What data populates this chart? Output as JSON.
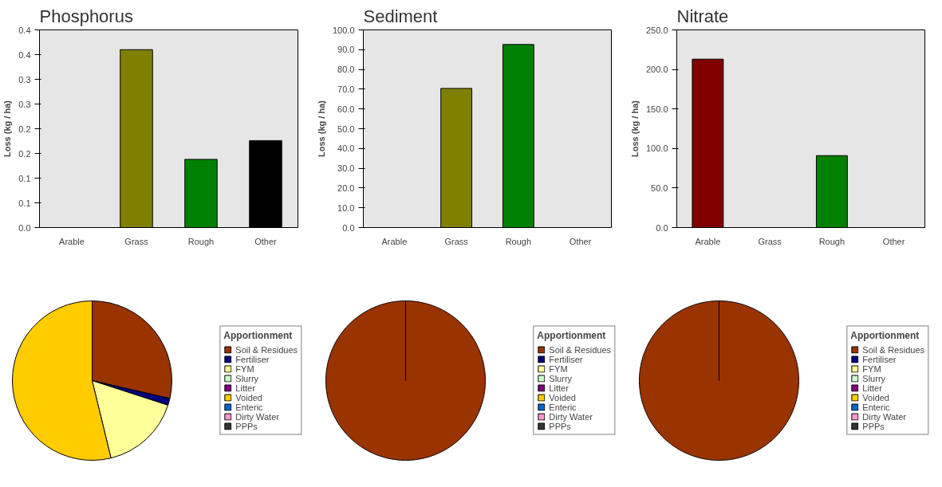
{
  "chart_data": [
    {
      "type": "bar",
      "title": "Phosphorus",
      "ylabel": "Loss (kg / ha)",
      "categories": [
        "Arable",
        "Grass",
        "Rough",
        "Other"
      ],
      "values": [
        null,
        0.36,
        0.138,
        0.176
      ],
      "colors": [
        "#800000",
        "#808000",
        "#008000",
        "#000000"
      ],
      "ylim": [
        0,
        0.4
      ],
      "yticks": [
        {
          "value": 0,
          "label": "0.0"
        },
        {
          "value": 0.05,
          "label": "0.1"
        },
        {
          "value": 0.1,
          "label": "0.1"
        },
        {
          "value": 0.15,
          "label": "0.2"
        },
        {
          "value": 0.2,
          "label": "0.2"
        },
        {
          "value": 0.25,
          "label": "0.3"
        },
        {
          "value": 0.3,
          "label": "0.3"
        },
        {
          "value": 0.35,
          "label": "0.4"
        },
        {
          "value": 0.4,
          "label": "0.4"
        }
      ]
    },
    {
      "type": "bar",
      "title": "Sediment",
      "ylabel": "Loss (kg / ha)",
      "categories": [
        "Arable",
        "Grass",
        "Rough",
        "Other"
      ],
      "values": [
        null,
        70.4,
        92.6,
        null
      ],
      "colors": [
        "#800000",
        "#808000",
        "#008000",
        "#000000"
      ],
      "ylim": [
        0,
        100
      ],
      "yticks": [
        {
          "value": 0,
          "label": "0.0"
        },
        {
          "value": 10,
          "label": "10.0"
        },
        {
          "value": 20,
          "label": "20.0"
        },
        {
          "value": 30,
          "label": "30.0"
        },
        {
          "value": 40,
          "label": "40.0"
        },
        {
          "value": 50,
          "label": "50.0"
        },
        {
          "value": 60,
          "label": "60.0"
        },
        {
          "value": 70,
          "label": "70.0"
        },
        {
          "value": 80,
          "label": "80.0"
        },
        {
          "value": 90,
          "label": "90.0"
        },
        {
          "value": 100,
          "label": "100.0"
        }
      ]
    },
    {
      "type": "bar",
      "title": "Nitrate",
      "ylabel": "Loss (kg / ha)",
      "categories": [
        "Arable",
        "Grass",
        "Rough",
        "Other"
      ],
      "values": [
        213,
        null,
        91,
        null
      ],
      "colors": [
        "#800000",
        "#808000",
        "#008000",
        "#000000"
      ],
      "ylim": [
        0,
        250
      ],
      "yticks": [
        {
          "value": 0,
          "label": "0.0"
        },
        {
          "value": 50,
          "label": "50.0"
        },
        {
          "value": 100,
          "label": "100.0"
        },
        {
          "value": 150,
          "label": "150.0"
        },
        {
          "value": 200,
          "label": "200.0"
        },
        {
          "value": 250,
          "label": "250.0"
        }
      ]
    },
    {
      "type": "pie",
      "legend_title": "Apportionment",
      "legend": "right",
      "categories": [
        "Soil & Residues",
        "Fertiliser",
        "FYM",
        "Slurry",
        "Litter",
        "Voided",
        "Enteric",
        "Dirty Water",
        "PPPs"
      ],
      "values": [
        28.6,
        1.4,
        16.2,
        0,
        0,
        53.8,
        0,
        0,
        0
      ],
      "colors": [
        "#993300",
        "#000080",
        "#ffff99",
        "#ccffcc",
        "#800080",
        "#ffcc00",
        "#0066cc",
        "#ff99cc",
        "#333333"
      ]
    },
    {
      "type": "pie",
      "legend_title": "Apportionment",
      "legend": "right",
      "categories": [
        "Soil & Residues",
        "Fertiliser",
        "FYM",
        "Slurry",
        "Litter",
        "Voided",
        "Enteric",
        "Dirty Water",
        "PPPs"
      ],
      "values": [
        100,
        0,
        0,
        0,
        0,
        0,
        0,
        0,
        0
      ],
      "colors": [
        "#993300",
        "#000080",
        "#ffff99",
        "#ccffcc",
        "#800080",
        "#ffcc00",
        "#0066cc",
        "#ff99cc",
        "#333333"
      ]
    },
    {
      "type": "pie",
      "legend_title": "Apportionment",
      "legend": "right",
      "categories": [
        "Soil & Residues",
        "Fertiliser",
        "FYM",
        "Slurry",
        "Litter",
        "Voided",
        "Enteric",
        "Dirty Water",
        "PPPs"
      ],
      "values": [
        100,
        0,
        0,
        0,
        0,
        0,
        0,
        0,
        0
      ],
      "colors": [
        "#993300",
        "#000080",
        "#ffff99",
        "#ccffcc",
        "#800080",
        "#ffcc00",
        "#0066cc",
        "#ff99cc",
        "#333333"
      ]
    }
  ]
}
